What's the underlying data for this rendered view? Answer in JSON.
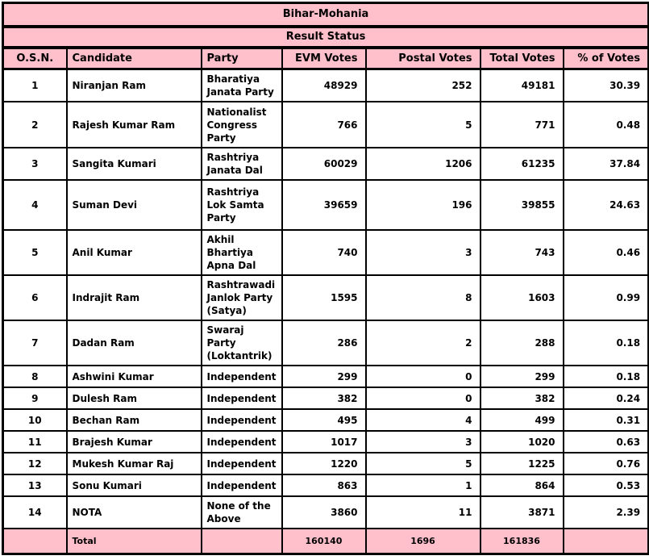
{
  "title": "Bihar-Mohania",
  "subtitle": "Result Status",
  "colors": {
    "header_pink": "#ffc0cb",
    "border_black": "#000000",
    "row_white": "#ffffff",
    "text_black": "#000000"
  },
  "table": {
    "columns": [
      "O.S.N.",
      "Candidate",
      "Party",
      "EVM Votes",
      "Postal Votes",
      "Total Votes",
      "% of Votes"
    ],
    "rows": [
      {
        "osn": "1",
        "candidate": "Niranjan Ram",
        "party": "Bharatiya\nJanata Party",
        "evm": "48929",
        "postal": "252",
        "total": "49181",
        "pct": "30.39"
      },
      {
        "osn": "2",
        "candidate": "Rajesh Kumar Ram",
        "party": "Nationalist\nCongress\nParty",
        "evm": "766",
        "postal": "5",
        "total": "771",
        "pct": "0.48"
      },
      {
        "osn": "3",
        "candidate": "Sangita Kumari",
        "party": "Rashtriya\nJanata Dal",
        "evm": "60029",
        "postal": "1206",
        "total": "61235",
        "pct": "37.84"
      },
      {
        "osn": "4",
        "candidate": "Suman Devi",
        "party": "Rashtriya\nLok Samta\nParty",
        "evm": "39659",
        "postal": "196",
        "total": "39855",
        "pct": "24.63"
      },
      {
        "osn": "5",
        "candidate": "Anil Kumar",
        "party": "Akhil\nBhartiya\nApna Dal",
        "evm": "740",
        "postal": "3",
        "total": "743",
        "pct": "0.46"
      },
      {
        "osn": "6",
        "candidate": "Indrajit Ram",
        "party": "Rashtrawadi\nJanlok Party\n(Satya)",
        "evm": "1595",
        "postal": "8",
        "total": "1603",
        "pct": "0.99"
      },
      {
        "osn": "7",
        "candidate": "Dadan Ram",
        "party": "Swaraj\nParty\n(Loktantrik)",
        "evm": "286",
        "postal": "2",
        "total": "288",
        "pct": "0.18"
      },
      {
        "osn": "8",
        "candidate": "Ashwini Kumar",
        "party": "Independent",
        "evm": "299",
        "postal": "0",
        "total": "299",
        "pct": "0.18"
      },
      {
        "osn": "9",
        "candidate": "Dulesh Ram",
        "party": "Independent",
        "evm": "382",
        "postal": "0",
        "total": "382",
        "pct": "0.24"
      },
      {
        "osn": "10",
        "candidate": "Bechan Ram",
        "party": "Independent",
        "evm": "495",
        "postal": "4",
        "total": "499",
        "pct": "0.31"
      },
      {
        "osn": "11",
        "candidate": "Brajesh Kumar",
        "party": "Independent",
        "evm": "1017",
        "postal": "3",
        "total": "1020",
        "pct": "0.63"
      },
      {
        "osn": "12",
        "candidate": "Mukesh Kumar Raj",
        "party": "Independent",
        "evm": "1220",
        "postal": "5",
        "total": "1225",
        "pct": "0.76"
      },
      {
        "osn": "13",
        "candidate": "Sonu Kumari",
        "party": "Independent",
        "evm": "863",
        "postal": "1",
        "total": "864",
        "pct": "0.53"
      },
      {
        "osn": "14",
        "candidate": "NOTA",
        "party": "None of the\nAbove",
        "evm": "3860",
        "postal": "11",
        "total": "3871",
        "pct": "2.39"
      }
    ],
    "total_row": {
      "label": "Total",
      "evm": "160140",
      "postal": "1696",
      "total": "161836"
    }
  }
}
